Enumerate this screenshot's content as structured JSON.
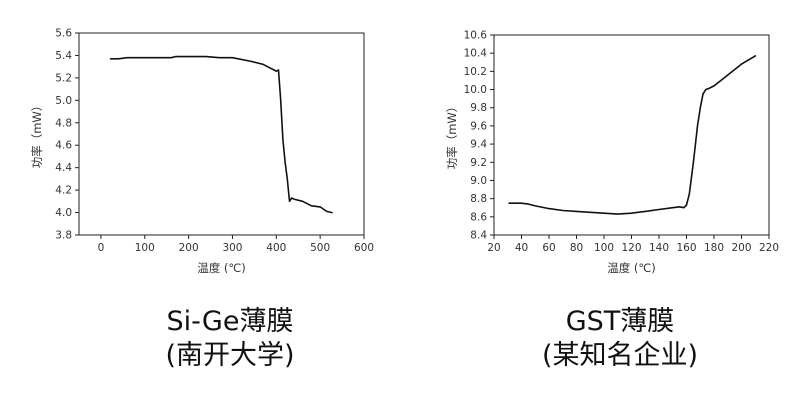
{
  "chart_data": [
    {
      "type": "line",
      "title": "",
      "xlabel": "温度 (℃)",
      "ylabel": "功率（mW）",
      "xlim": [
        -50,
        600
      ],
      "ylim": [
        3.8,
        5.6
      ],
      "xticks": [
        0,
        100,
        200,
        300,
        400,
        500,
        600
      ],
      "yticks": [
        3.8,
        4.0,
        4.2,
        4.4,
        4.6,
        4.8,
        5.0,
        5.2,
        5.4,
        5.6
      ],
      "ytick_decimals": 1,
      "grid": false,
      "series": [
        {
          "x": [
            22,
            40,
            60,
            100,
            160,
            170,
            200,
            240,
            270,
            300,
            340,
            370,
            385,
            395,
            400,
            405,
            410,
            415,
            420,
            425,
            430,
            435,
            440,
            460,
            480,
            500,
            515,
            527
          ],
          "y": [
            5.37,
            5.37,
            5.38,
            5.38,
            5.38,
            5.39,
            5.39,
            5.39,
            5.38,
            5.38,
            5.35,
            5.32,
            5.29,
            5.27,
            5.26,
            5.27,
            5.0,
            4.65,
            4.45,
            4.3,
            4.1,
            4.13,
            4.12,
            4.1,
            4.06,
            4.05,
            4.01,
            4.0
          ]
        }
      ],
      "caption": [
        "Si-Ge薄膜",
        "(南开大学)"
      ]
    },
    {
      "type": "line",
      "title": "",
      "xlabel": "温度 (℃)",
      "ylabel": "功率（mW）",
      "xlim": [
        20,
        220
      ],
      "ylim": [
        8.4,
        10.6
      ],
      "xticks": [
        20,
        40,
        60,
        80,
        100,
        120,
        140,
        160,
        180,
        200,
        220
      ],
      "yticks": [
        8.4,
        8.6,
        8.8,
        9.0,
        9.2,
        9.4,
        9.6,
        9.8,
        10.0,
        10.2,
        10.4,
        10.6
      ],
      "ytick_decimals": 1,
      "grid": false,
      "series": [
        {
          "x": [
            31,
            40,
            45,
            50,
            60,
            70,
            80,
            90,
            100,
            110,
            120,
            130,
            140,
            150,
            155,
            158,
            160,
            162,
            165,
            168,
            170,
            172,
            174,
            176,
            180,
            185,
            190,
            200,
            210
          ],
          "y": [
            8.75,
            8.75,
            8.74,
            8.72,
            8.69,
            8.67,
            8.66,
            8.65,
            8.64,
            8.63,
            8.64,
            8.66,
            8.68,
            8.7,
            8.71,
            8.7,
            8.73,
            8.85,
            9.2,
            9.6,
            9.8,
            9.95,
            10.0,
            10.01,
            10.04,
            10.1,
            10.16,
            10.28,
            10.37
          ]
        }
      ],
      "caption": [
        "GST薄膜",
        "(某知名企业)"
      ]
    }
  ]
}
